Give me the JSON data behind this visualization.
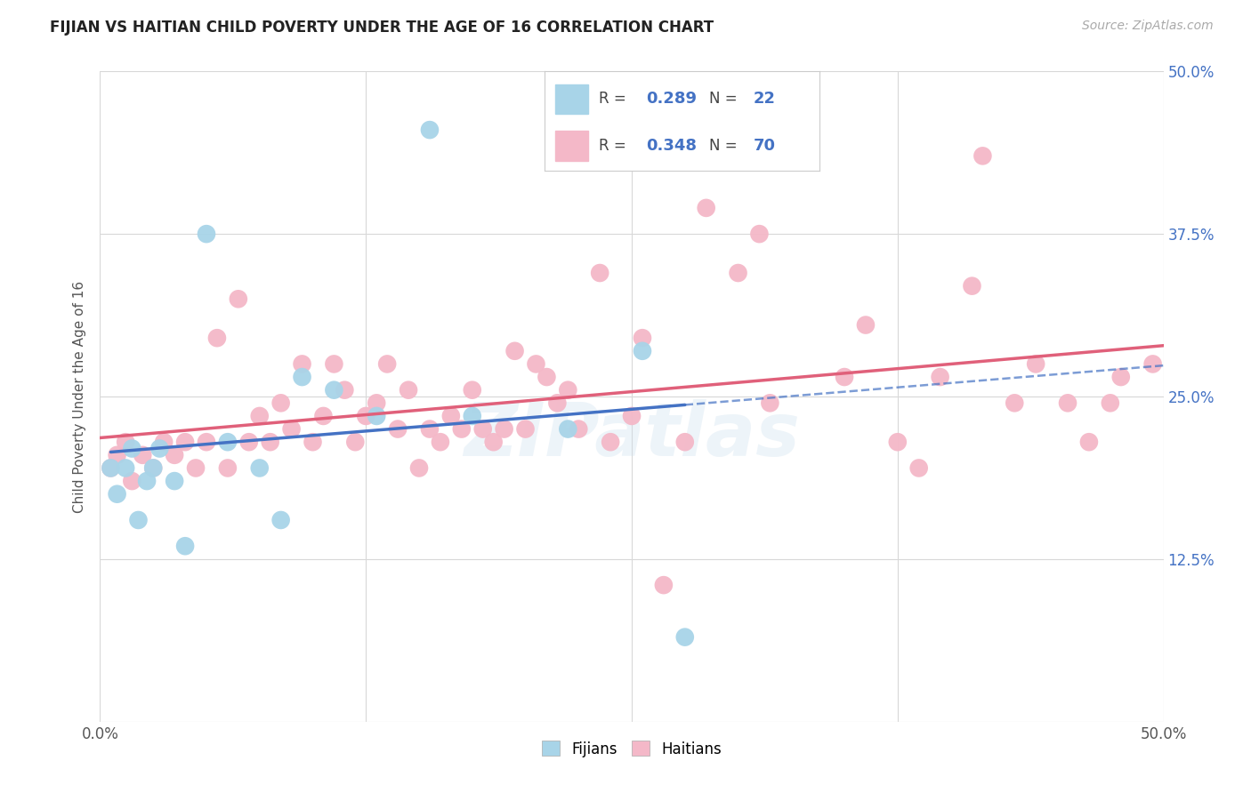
{
  "title": "FIJIAN VS HAITIAN CHILD POVERTY UNDER THE AGE OF 16 CORRELATION CHART",
  "source": "Source: ZipAtlas.com",
  "ylabel": "Child Poverty Under the Age of 16",
  "xlim": [
    0,
    0.5
  ],
  "ylim": [
    0,
    0.5
  ],
  "fijian_color": "#a8d4e8",
  "haitian_color": "#f4b8c8",
  "trend_fijian_color": "#4472C4",
  "trend_haitian_color": "#E0607A",
  "fijian_R": 0.289,
  "fijian_N": 22,
  "haitian_R": 0.348,
  "haitian_N": 70,
  "background_color": "#ffffff",
  "grid_color": "#d8d8d8",
  "label_color": "#4472C4",
  "title_color": "#222222",
  "fijian_x": [
    0.005,
    0.008,
    0.012,
    0.015,
    0.018,
    0.022,
    0.025,
    0.028,
    0.035,
    0.04,
    0.05,
    0.06,
    0.075,
    0.085,
    0.095,
    0.11,
    0.13,
    0.155,
    0.175,
    0.22,
    0.255,
    0.275
  ],
  "fijian_y": [
    0.195,
    0.175,
    0.195,
    0.21,
    0.155,
    0.185,
    0.195,
    0.21,
    0.185,
    0.135,
    0.375,
    0.215,
    0.195,
    0.155,
    0.265,
    0.255,
    0.235,
    0.455,
    0.235,
    0.225,
    0.285,
    0.065
  ],
  "haitian_x": [
    0.005,
    0.008,
    0.012,
    0.015,
    0.02,
    0.025,
    0.03,
    0.035,
    0.04,
    0.045,
    0.05,
    0.055,
    0.06,
    0.065,
    0.07,
    0.075,
    0.08,
    0.085,
    0.09,
    0.095,
    0.1,
    0.105,
    0.11,
    0.115,
    0.12,
    0.125,
    0.13,
    0.135,
    0.14,
    0.145,
    0.15,
    0.155,
    0.16,
    0.165,
    0.17,
    0.175,
    0.18,
    0.185,
    0.19,
    0.195,
    0.2,
    0.205,
    0.21,
    0.215,
    0.22,
    0.225,
    0.235,
    0.24,
    0.25,
    0.255,
    0.265,
    0.275,
    0.285,
    0.3,
    0.31,
    0.315,
    0.35,
    0.36,
    0.375,
    0.385,
    0.395,
    0.41,
    0.415,
    0.43,
    0.44,
    0.455,
    0.465,
    0.475,
    0.48,
    0.495
  ],
  "haitian_y": [
    0.195,
    0.205,
    0.215,
    0.185,
    0.205,
    0.195,
    0.215,
    0.205,
    0.215,
    0.195,
    0.215,
    0.295,
    0.195,
    0.325,
    0.215,
    0.235,
    0.215,
    0.245,
    0.225,
    0.275,
    0.215,
    0.235,
    0.275,
    0.255,
    0.215,
    0.235,
    0.245,
    0.275,
    0.225,
    0.255,
    0.195,
    0.225,
    0.215,
    0.235,
    0.225,
    0.255,
    0.225,
    0.215,
    0.225,
    0.285,
    0.225,
    0.275,
    0.265,
    0.245,
    0.255,
    0.225,
    0.345,
    0.215,
    0.235,
    0.295,
    0.105,
    0.215,
    0.395,
    0.345,
    0.375,
    0.245,
    0.265,
    0.305,
    0.215,
    0.195,
    0.265,
    0.335,
    0.435,
    0.245,
    0.275,
    0.245,
    0.215,
    0.245,
    0.265,
    0.275
  ],
  "watermark_text": "ZIPatlas",
  "legend_fijian_label": "Fijians",
  "legend_haitian_label": "Haitians"
}
